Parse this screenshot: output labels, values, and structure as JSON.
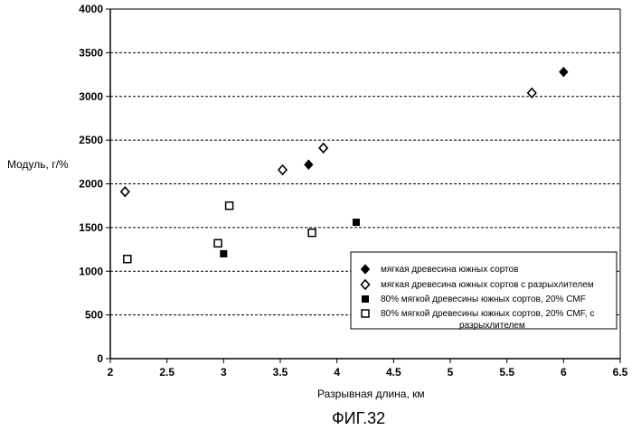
{
  "chart_data": {
    "type": "scatter",
    "xlabel": "Разрывная длина, км",
    "ylabel": "Модуль, г/%",
    "xlim": [
      2,
      6.5
    ],
    "ylim": [
      0,
      4000
    ],
    "x_ticks": [
      "2",
      "2.5",
      "3",
      "3.5",
      "4",
      "4.5",
      "5",
      "5.5",
      "6",
      "6.5"
    ],
    "y_ticks": [
      "0",
      "500",
      "1000",
      "1500",
      "2000",
      "2500",
      "3000",
      "3500",
      "4000"
    ],
    "grid": "horizontal dashed",
    "legend_position": "lower-right",
    "series": [
      {
        "name": "мягкая древесина южных сортов",
        "marker": "filled-diamond",
        "x": [
          3.75,
          6.0
        ],
        "y": [
          2220,
          3280
        ]
      },
      {
        "name": "мягкая древесина южных сортов  с разрыхлителем",
        "marker": "open-diamond",
        "x": [
          2.13,
          3.52,
          3.88,
          5.72
        ],
        "y": [
          1910,
          2160,
          2410,
          3040
        ]
      },
      {
        "name": "80% мягкой древесины южных сортов, 20% CMF",
        "marker": "filled-square",
        "x": [
          3.0,
          4.17
        ],
        "y": [
          1200,
          1560
        ]
      },
      {
        "name_lines": [
          "80% мягкой древесины южных сортов, 20% CMF, с",
          "разрыхлителем"
        ],
        "marker": "open-square",
        "x": [
          2.15,
          2.95,
          3.05,
          3.78
        ],
        "y": [
          1140,
          1320,
          1750,
          1440
        ]
      }
    ],
    "caption": "ФИГ.32"
  }
}
